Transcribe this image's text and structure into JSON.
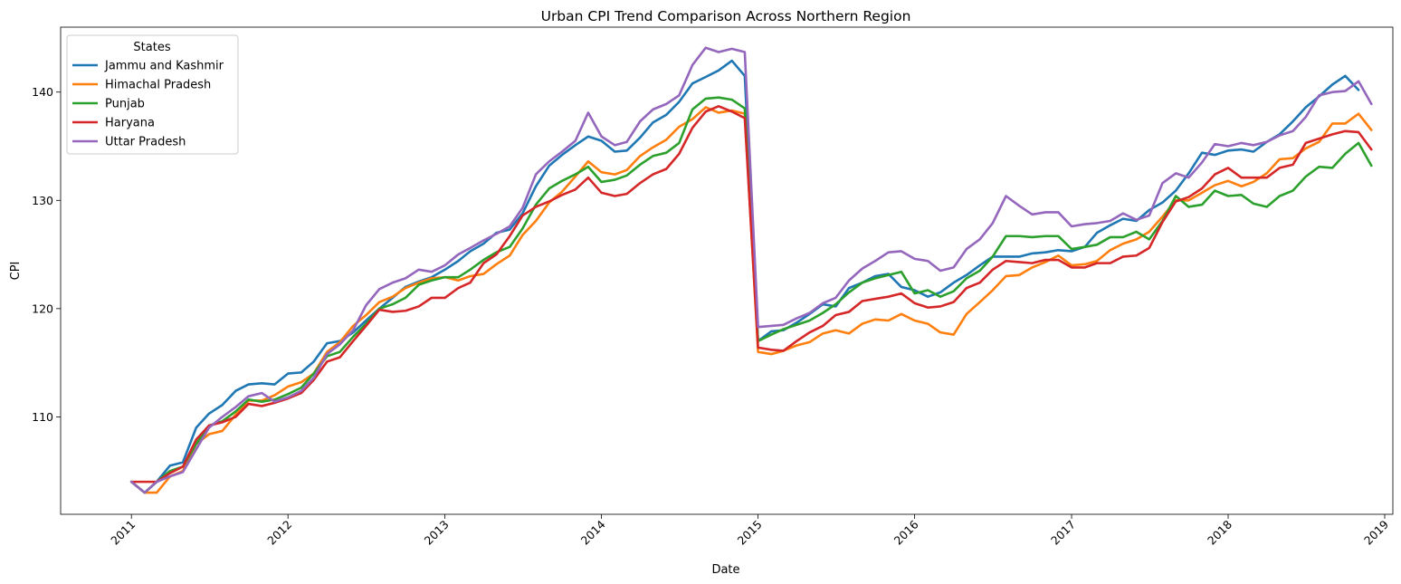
{
  "chart_data": {
    "type": "line",
    "title": "Urban CPI Trend Comparison Across Northern Region",
    "xlabel": "Date",
    "ylabel": "CPI",
    "xlim": [
      "2010-07-20",
      "2019-01-20"
    ],
    "ylim": [
      101.0,
      146.0
    ],
    "x_ticks": [
      "2011",
      "2012",
      "2013",
      "2014",
      "2015",
      "2016",
      "2017",
      "2018",
      "2019"
    ],
    "y_ticks": [
      110,
      120,
      130,
      140
    ],
    "grid": false,
    "legend": {
      "title": "States",
      "placement": "top-left"
    },
    "x_start": "2011-01",
    "x_end": "2018-11",
    "series": [
      {
        "name": "Jammu and Kashmir",
        "color": "#1f77b4",
        "values": [
          104.0,
          103.0,
          104.0,
          105.5,
          105.8,
          109.0,
          110.3,
          111.1,
          112.4,
          113.0,
          113.1,
          113.0,
          114.0,
          114.1,
          115.1,
          116.8,
          117.0,
          117.8,
          118.9,
          120.0,
          121.0,
          122.0,
          122.5,
          122.9,
          123.6,
          124.4,
          125.3,
          126.0,
          127.0,
          127.3,
          128.8,
          131.3,
          133.2,
          134.2,
          135.1,
          135.9,
          135.5,
          134.5,
          134.6,
          135.8,
          137.2,
          137.9,
          139.1,
          140.8,
          141.4,
          142.0,
          142.9,
          141.5,
          117.0,
          117.9,
          118.0,
          118.7,
          119.5,
          120.4,
          120.2,
          121.9,
          122.4,
          123.0,
          123.2,
          122.0,
          121.7,
          121.1,
          121.5,
          122.4,
          123.1,
          124.0,
          124.8,
          124.8,
          124.8,
          125.1,
          125.2,
          125.4,
          125.3,
          125.7,
          127.0,
          127.7,
          128.3,
          128.1,
          129.1,
          129.8,
          130.9,
          132.5,
          134.4,
          134.2,
          134.6,
          134.7,
          134.5,
          135.4,
          136.1,
          137.3,
          138.6,
          139.6,
          140.7,
          141.5,
          140.2
        ]
      },
      {
        "name": "Himachal Pradesh",
        "color": "#ff7f0e",
        "values": [
          104.0,
          103.0,
          103.0,
          104.5,
          105.0,
          107.5,
          108.4,
          108.7,
          110.2,
          111.5,
          111.5,
          112.0,
          112.8,
          113.2,
          114.0,
          116.0,
          116.9,
          118.4,
          119.4,
          120.6,
          121.1,
          121.9,
          122.4,
          122.8,
          122.9,
          122.6,
          123.0,
          123.2,
          124.1,
          124.9,
          126.8,
          128.1,
          129.8,
          130.8,
          132.2,
          133.6,
          132.6,
          132.4,
          132.8,
          134.1,
          134.9,
          135.6,
          136.8,
          137.5,
          138.6,
          138.1,
          138.3,
          138.0,
          116.0,
          115.8,
          116.1,
          116.6,
          116.9,
          117.7,
          118.0,
          117.7,
          118.6,
          119.0,
          118.9,
          119.5,
          118.9,
          118.6,
          117.8,
          117.6,
          119.5,
          120.6,
          121.7,
          123.0,
          123.1,
          123.8,
          124.3,
          124.9,
          124.0,
          124.1,
          124.4,
          125.4,
          126.0,
          126.4,
          127.1,
          128.5,
          130.0,
          130.0,
          130.7,
          131.4,
          131.8,
          131.3,
          131.7,
          132.5,
          133.8,
          133.9,
          134.8,
          135.4,
          137.1,
          137.1,
          138.0,
          136.5
        ]
      },
      {
        "name": "Punjab",
        "color": "#2ca02c",
        "values": [
          104.0,
          103.0,
          104.0,
          105.0,
          105.4,
          107.5,
          109.2,
          109.6,
          110.5,
          111.6,
          111.4,
          111.6,
          112.1,
          112.7,
          114.0,
          115.6,
          116.0,
          117.4,
          118.6,
          120.0,
          120.4,
          121.0,
          122.2,
          122.6,
          122.9,
          122.9,
          123.6,
          124.5,
          125.2,
          125.7,
          127.4,
          129.6,
          131.1,
          131.8,
          132.4,
          133.1,
          131.7,
          131.9,
          132.3,
          133.3,
          134.1,
          134.4,
          135.3,
          138.4,
          139.4,
          139.5,
          139.3,
          138.5,
          117.0,
          117.6,
          118.1,
          118.5,
          118.9,
          119.6,
          120.4,
          121.5,
          122.4,
          122.8,
          123.1,
          123.4,
          121.4,
          121.7,
          121.1,
          121.6,
          122.8,
          123.5,
          124.8,
          126.7,
          126.7,
          126.6,
          126.7,
          126.7,
          125.5,
          125.7,
          125.9,
          126.6,
          126.6,
          127.1,
          126.4,
          128.1,
          130.4,
          129.4,
          129.6,
          130.9,
          130.4,
          130.5,
          129.7,
          129.4,
          130.4,
          130.9,
          132.2,
          133.1,
          133.0,
          134.3,
          135.3,
          133.2
        ]
      },
      {
        "name": "Haryana",
        "color": "#d62728",
        "values": [
          104.0,
          104.0,
          104.0,
          104.8,
          105.4,
          107.9,
          109.2,
          109.5,
          110.0,
          111.2,
          111.0,
          111.3,
          111.7,
          112.2,
          113.4,
          115.1,
          115.5,
          117.0,
          118.4,
          119.9,
          119.7,
          119.8,
          120.2,
          121.0,
          121.0,
          121.9,
          122.4,
          124.2,
          125.0,
          126.7,
          128.6,
          129.4,
          129.9,
          130.5,
          131.0,
          132.1,
          130.7,
          130.4,
          130.6,
          131.6,
          132.4,
          132.9,
          134.3,
          136.7,
          138.2,
          138.7,
          138.2,
          137.6,
          116.4,
          116.2,
          116.1,
          117.0,
          117.8,
          118.4,
          119.4,
          119.7,
          120.7,
          120.9,
          121.1,
          121.4,
          120.5,
          120.1,
          120.2,
          120.6,
          121.9,
          122.4,
          123.6,
          124.4,
          124.3,
          124.2,
          124.5,
          124.5,
          123.8,
          123.8,
          124.2,
          124.2,
          124.8,
          124.9,
          125.6,
          128.0,
          129.9,
          130.3,
          131.1,
          132.4,
          133.0,
          132.1,
          132.1,
          132.1,
          133.0,
          133.3,
          135.3,
          135.7,
          136.1,
          136.4,
          136.3,
          134.7
        ]
      },
      {
        "name": "Uttar Pradesh",
        "color": "#9467bd",
        "values": [
          104.0,
          103.0,
          104.0,
          104.5,
          104.9,
          107.0,
          109.0,
          110.0,
          110.9,
          111.9,
          112.2,
          111.4,
          111.8,
          112.4,
          113.6,
          115.8,
          116.7,
          118.0,
          120.3,
          121.8,
          122.4,
          122.8,
          123.6,
          123.4,
          124.0,
          125.0,
          125.6,
          126.3,
          126.9,
          127.6,
          129.3,
          132.4,
          133.6,
          134.5,
          135.5,
          138.1,
          135.9,
          135.1,
          135.4,
          137.3,
          138.4,
          138.9,
          139.7,
          142.5,
          144.1,
          143.7,
          144.0,
          143.7,
          118.3,
          118.4,
          118.5,
          119.1,
          119.6,
          120.5,
          121.0,
          122.6,
          123.7,
          124.4,
          125.2,
          125.3,
          124.6,
          124.4,
          123.5,
          123.8,
          125.5,
          126.4,
          127.9,
          130.4,
          129.5,
          128.7,
          128.9,
          128.9,
          127.6,
          127.8,
          127.9,
          128.1,
          128.8,
          128.2,
          128.6,
          131.6,
          132.5,
          132.1,
          133.5,
          135.2,
          135.0,
          135.3,
          135.1,
          135.4,
          136.0,
          136.4,
          137.7,
          139.7,
          140.0,
          140.1,
          141.0,
          138.9
        ]
      }
    ]
  }
}
